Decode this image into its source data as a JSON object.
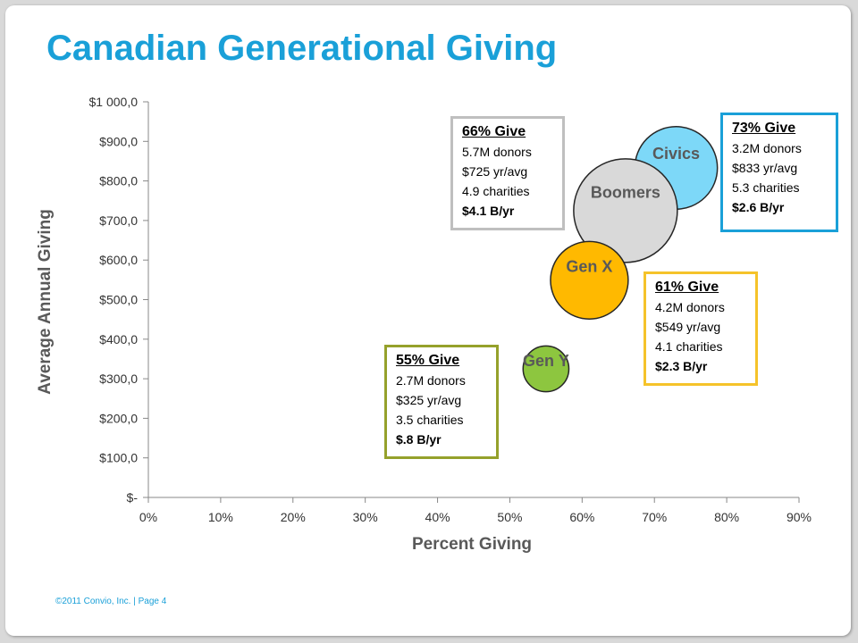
{
  "title": "Canadian Generational Giving",
  "footer": "©2011 Convio, Inc.  |  Page  4",
  "chart_data": {
    "type": "scatter",
    "xlabel": "Percent Giving",
    "ylabel": "Average Annual Giving",
    "xlim": [
      0,
      90
    ],
    "ylim": [
      0,
      1000
    ],
    "x_ticks": [
      "0%",
      "10%",
      "20%",
      "30%",
      "40%",
      "50%",
      "60%",
      "70%",
      "80%",
      "90%"
    ],
    "y_ticks": [
      "$-",
      "$100,0",
      "$200,0",
      "$300,0",
      "$400,0",
      "$500,0",
      "$600,0",
      "$700,0",
      "$800,0",
      "$900,0",
      "$1 000,0"
    ],
    "series": [
      {
        "name": "Gen Y",
        "x": 55,
        "y": 325,
        "size": 0.8,
        "color": "#8dc63f"
      },
      {
        "name": "Gen X",
        "x": 61,
        "y": 549,
        "size": 2.3,
        "color": "#ffb900"
      },
      {
        "name": "Boomers",
        "x": 66,
        "y": 725,
        "size": 4.1,
        "color": "#d9d9d9"
      },
      {
        "name": "Civics",
        "x": 73,
        "y": 833,
        "size": 2.6,
        "color": "#7dd8f8"
      }
    ]
  },
  "callouts": [
    {
      "id": "geny",
      "border": "#95a12b",
      "head": "55% Give",
      "lines": [
        "2.7M donors",
        "$325 yr/avg",
        "3.5 charities"
      ],
      "total": "$.8 B/yr"
    },
    {
      "id": "genx",
      "border": "#f5c32a",
      "head": "61% Give",
      "lines": [
        "4.2M donors",
        "$549 yr/avg",
        "4.1 charities"
      ],
      "total": "$2.3 B/yr"
    },
    {
      "id": "boomers",
      "border": "#bfbfbf",
      "head": "66% Give",
      "lines": [
        "5.7M donors",
        "$725 yr/avg",
        "4.9 charities"
      ],
      "total": "$4.1 B/yr"
    },
    {
      "id": "civics",
      "border": "#1aa0d8",
      "head": "73% Give",
      "lines": [
        "3.2M donors",
        "$833 yr/avg",
        "5.3 charities"
      ],
      "total": "$2.6 B/yr"
    }
  ]
}
